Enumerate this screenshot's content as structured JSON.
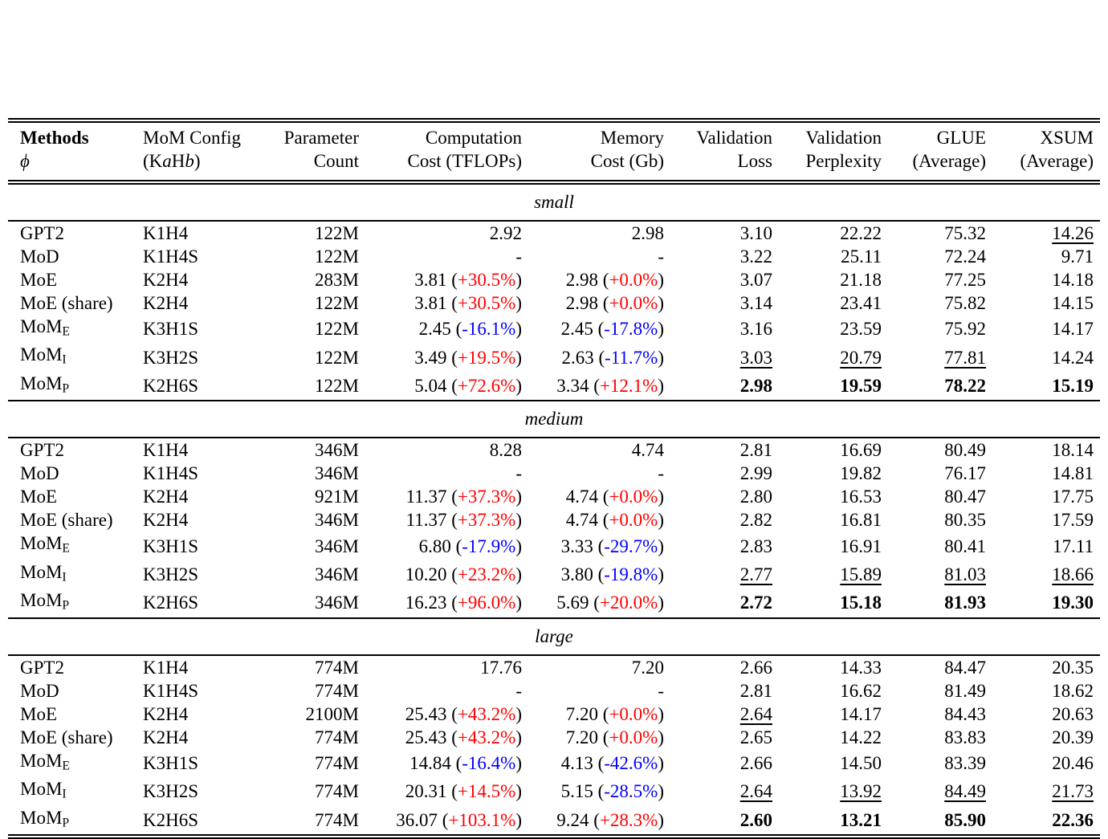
{
  "colors": {
    "increase_pct": "#ff0000",
    "decrease_pct": "#0000ff",
    "text": "#000000",
    "background": "#ffffff"
  },
  "fmt": {
    "open": " (",
    "close": ")"
  },
  "table": {
    "columns": [
      {
        "id": "methods",
        "align": "left",
        "lines": [
          [
            {
              "t": "Methods",
              "s": "b"
            }
          ],
          [
            {
              "t": "ϕ",
              "s": "i"
            }
          ]
        ]
      },
      {
        "id": "mom-config",
        "align": "left",
        "lines": [
          [
            {
              "t": "MoM Config"
            }
          ],
          [
            {
              "t": "(K"
            },
            {
              "t": "a",
              "s": "i"
            },
            {
              "t": "H"
            },
            {
              "t": "b",
              "s": "i"
            },
            {
              "t": ")"
            }
          ]
        ]
      },
      {
        "id": "parameter-count",
        "align": "right",
        "lines": [
          [
            {
              "t": "Parameter"
            }
          ],
          [
            {
              "t": "Count"
            }
          ]
        ]
      },
      {
        "id": "computation-cost",
        "align": "right",
        "lines": [
          [
            {
              "t": "Computation"
            }
          ],
          [
            {
              "t": "Cost (TFLOPs)"
            }
          ]
        ]
      },
      {
        "id": "memory-cost",
        "align": "right",
        "lines": [
          [
            {
              "t": "Memory"
            }
          ],
          [
            {
              "t": "Cost (Gb)"
            }
          ]
        ]
      },
      {
        "id": "validation-loss",
        "align": "right",
        "lines": [
          [
            {
              "t": "Validation"
            }
          ],
          [
            {
              "t": "Loss"
            }
          ]
        ]
      },
      {
        "id": "validation-perplexity",
        "align": "right",
        "lines": [
          [
            {
              "t": "Validation"
            }
          ],
          [
            {
              "t": "Perplexity"
            }
          ]
        ]
      },
      {
        "id": "glue-average",
        "align": "right",
        "lines": [
          [
            {
              "t": "GLUE"
            }
          ],
          [
            {
              "t": "(Average)"
            }
          ]
        ]
      },
      {
        "id": "xsum-average",
        "align": "right",
        "lines": [
          [
            {
              "t": "XSUM"
            }
          ],
          [
            {
              "t": "(Average)"
            }
          ]
        ]
      }
    ],
    "sections": [
      {
        "label": "small",
        "rows": [
          {
            "method": "GPT2",
            "config": "K1H4",
            "params": "122M",
            "comp": "2.92",
            "mem": "2.98",
            "loss": "3.10",
            "ppl": "22.22",
            "glue": "75.32",
            "xsum": {
              "t": "14.26",
              "s": "u"
            }
          },
          {
            "method": "MoD",
            "config": "K1H4S",
            "params": "122M",
            "comp": "-",
            "mem": "-",
            "loss": "3.22",
            "ppl": "25.11",
            "glue": "72.24",
            "xsum": "9.71"
          },
          {
            "method": "MoE",
            "config": "K2H4",
            "params": "283M",
            "comp": {
              "val": "3.81",
              "pct": "+30.5%"
            },
            "mem": {
              "val": "2.98",
              "pct": "+0.0%"
            },
            "loss": "3.07",
            "ppl": "21.18",
            "glue": "77.25",
            "xsum": "14.18"
          },
          {
            "method": "MoE (share)",
            "config": "K2H4",
            "params": "122M",
            "comp": {
              "val": "3.81",
              "pct": "+30.5%"
            },
            "mem": {
              "val": "2.98",
              "pct": "+0.0%"
            },
            "loss": "3.14",
            "ppl": "23.41",
            "glue": "75.82",
            "xsum": "14.15"
          },
          {
            "method": [
              {
                "t": "MoM"
              },
              {
                "t": "E",
                "s": "sub"
              }
            ],
            "config": "K3H1S",
            "params": "122M",
            "comp": {
              "val": "2.45",
              "pct": "-16.1%",
              "neg": true
            },
            "mem": {
              "val": "2.45",
              "pct": "-17.8%",
              "neg": true
            },
            "loss": "3.16",
            "ppl": "23.59",
            "glue": "75.92",
            "xsum": "14.17"
          },
          {
            "method": [
              {
                "t": "MoM"
              },
              {
                "t": "I",
                "s": "sub"
              }
            ],
            "config": "K3H2S",
            "params": "122M",
            "comp": {
              "val": "3.49",
              "pct": "+19.5%"
            },
            "mem": {
              "val": "2.63",
              "pct": "-11.7%",
              "neg": true
            },
            "loss": {
              "t": "3.03",
              "s": "u"
            },
            "ppl": {
              "t": "20.79",
              "s": "u"
            },
            "glue": {
              "t": "77.81",
              "s": "u"
            },
            "xsum": "14.24"
          },
          {
            "method": [
              {
                "t": "MoM"
              },
              {
                "t": "P",
                "s": "sub"
              }
            ],
            "config": "K2H6S",
            "params": "122M",
            "comp": {
              "val": "5.04",
              "pct": "+72.6%"
            },
            "mem": {
              "val": "3.34",
              "pct": "+12.1%"
            },
            "loss": {
              "t": "2.98",
              "s": "b"
            },
            "ppl": {
              "t": "19.59",
              "s": "b"
            },
            "glue": {
              "t": "78.22",
              "s": "b"
            },
            "xsum": {
              "t": "15.19",
              "s": "b"
            }
          }
        ]
      },
      {
        "label": "medium",
        "rows": [
          {
            "method": "GPT2",
            "config": "K1H4",
            "params": "346M",
            "comp": "8.28",
            "mem": "4.74",
            "loss": "2.81",
            "ppl": "16.69",
            "glue": "80.49",
            "xsum": "18.14"
          },
          {
            "method": "MoD",
            "config": "K1H4S",
            "params": "346M",
            "comp": "-",
            "mem": "-",
            "loss": "2.99",
            "ppl": "19.82",
            "glue": "76.17",
            "xsum": "14.81"
          },
          {
            "method": "MoE",
            "config": "K2H4",
            "params": "921M",
            "comp": {
              "val": "11.37",
              "pct": "+37.3%"
            },
            "mem": {
              "val": "4.74",
              "pct": "+0.0%"
            },
            "loss": "2.80",
            "ppl": "16.53",
            "glue": "80.47",
            "xsum": "17.75"
          },
          {
            "method": "MoE (share)",
            "config": "K2H4",
            "params": "346M",
            "comp": {
              "val": "11.37",
              "pct": "+37.3%"
            },
            "mem": {
              "val": "4.74",
              "pct": "+0.0%"
            },
            "loss": "2.82",
            "ppl": "16.81",
            "glue": "80.35",
            "xsum": "17.59"
          },
          {
            "method": [
              {
                "t": "MoM"
              },
              {
                "t": "E",
                "s": "sub"
              }
            ],
            "config": "K3H1S",
            "params": "346M",
            "comp": {
              "val": "6.80",
              "pct": "-17.9%",
              "neg": true
            },
            "mem": {
              "val": "3.33",
              "pct": "-29.7%",
              "neg": true
            },
            "loss": "2.83",
            "ppl": "16.91",
            "glue": "80.41",
            "xsum": "17.11"
          },
          {
            "method": [
              {
                "t": "MoM"
              },
              {
                "t": "I",
                "s": "sub"
              }
            ],
            "config": "K3H2S",
            "params": "346M",
            "comp": {
              "val": "10.20",
              "pct": "+23.2%"
            },
            "mem": {
              "val": "3.80",
              "pct": "-19.8%",
              "neg": true
            },
            "loss": {
              "t": "2.77",
              "s": "u"
            },
            "ppl": {
              "t": "15.89",
              "s": "u"
            },
            "glue": {
              "t": "81.03",
              "s": "u"
            },
            "xsum": {
              "t": "18.66",
              "s": "u"
            }
          },
          {
            "method": [
              {
                "t": "MoM"
              },
              {
                "t": "P",
                "s": "sub"
              }
            ],
            "config": "K2H6S",
            "params": "346M",
            "comp": {
              "val": "16.23",
              "pct": "+96.0%"
            },
            "mem": {
              "val": "5.69",
              "pct": "+20.0%"
            },
            "loss": {
              "t": "2.72",
              "s": "b"
            },
            "ppl": {
              "t": "15.18",
              "s": "b"
            },
            "glue": {
              "t": "81.93",
              "s": "b"
            },
            "xsum": {
              "t": "19.30",
              "s": "b"
            }
          }
        ]
      },
      {
        "label": "large",
        "rows": [
          {
            "method": "GPT2",
            "config": "K1H4",
            "params": "774M",
            "comp": "17.76",
            "mem": "7.20",
            "loss": "2.66",
            "ppl": "14.33",
            "glue": "84.47",
            "xsum": "20.35"
          },
          {
            "method": "MoD",
            "config": "K1H4S",
            "params": "774M",
            "comp": "-",
            "mem": "-",
            "loss": "2.81",
            "ppl": "16.62",
            "glue": "81.49",
            "xsum": "18.62"
          },
          {
            "method": "MoE",
            "config": "K2H4",
            "params": "2100M",
            "comp": {
              "val": "25.43",
              "pct": "+43.2%"
            },
            "mem": {
              "val": "7.20",
              "pct": "+0.0%"
            },
            "loss": {
              "t": "2.64",
              "s": "u"
            },
            "ppl": "14.17",
            "glue": "84.43",
            "xsum": "20.63"
          },
          {
            "method": "MoE (share)",
            "config": "K2H4",
            "params": "774M",
            "comp": {
              "val": "25.43",
              "pct": "+43.2%"
            },
            "mem": {
              "val": "7.20",
              "pct": "+0.0%"
            },
            "loss": "2.65",
            "ppl": "14.22",
            "glue": "83.83",
            "xsum": "20.39"
          },
          {
            "method": [
              {
                "t": "MoM"
              },
              {
                "t": "E",
                "s": "sub"
              }
            ],
            "config": "K3H1S",
            "params": "774M",
            "comp": {
              "val": "14.84",
              "pct": "-16.4%",
              "neg": true
            },
            "mem": {
              "val": "4.13",
              "pct": "-42.6%",
              "neg": true
            },
            "loss": "2.66",
            "ppl": "14.50",
            "glue": "83.39",
            "xsum": "20.46"
          },
          {
            "method": [
              {
                "t": "MoM"
              },
              {
                "t": "I",
                "s": "sub"
              }
            ],
            "config": "K3H2S",
            "params": "774M",
            "comp": {
              "val": "20.31",
              "pct": "+14.5%"
            },
            "mem": {
              "val": "5.15",
              "pct": "-28.5%",
              "neg": true
            },
            "loss": {
              "t": "2.64",
              "s": "u"
            },
            "ppl": {
              "t": "13.92",
              "s": "u"
            },
            "glue": {
              "t": "84.49",
              "s": "u"
            },
            "xsum": {
              "t": "21.73",
              "s": "u"
            }
          },
          {
            "method": [
              {
                "t": "MoM"
              },
              {
                "t": "P",
                "s": "sub"
              }
            ],
            "config": "K2H6S",
            "params": "774M",
            "comp": {
              "val": "36.07",
              "pct": "+103.1%"
            },
            "mem": {
              "val": "9.24",
              "pct": "+28.3%"
            },
            "loss": {
              "t": "2.60",
              "s": "b"
            },
            "ppl": {
              "t": "13.21",
              "s": "b"
            },
            "glue": {
              "t": "85.90",
              "s": "b"
            },
            "xsum": {
              "t": "22.36",
              "s": "b"
            }
          }
        ]
      }
    ]
  }
}
